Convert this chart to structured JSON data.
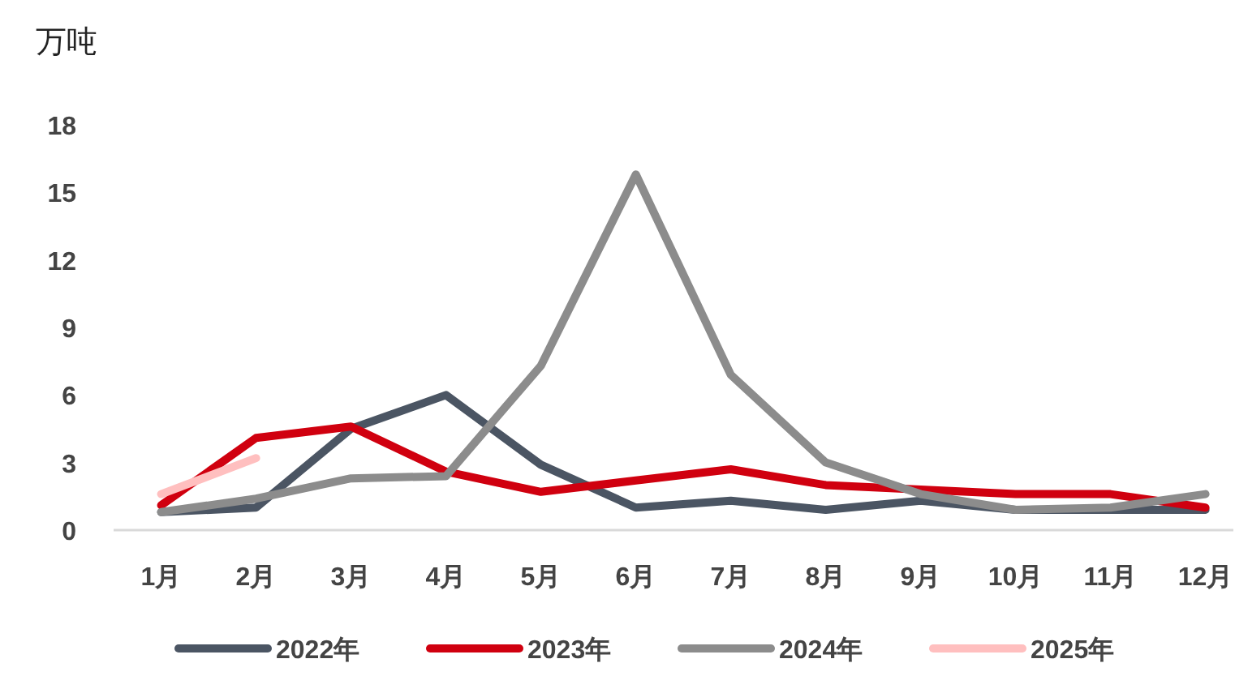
{
  "chart_data": {
    "type": "line",
    "ylabel": "万吨",
    "categories": [
      "1月",
      "2月",
      "3月",
      "4月",
      "5月",
      "6月",
      "7月",
      "8月",
      "9月",
      "10月",
      "11月",
      "12月"
    ],
    "series": [
      {
        "name": "2022年",
        "color": "#4b5563",
        "values": [
          0.8,
          1.0,
          4.5,
          6.0,
          2.9,
          1.0,
          1.3,
          0.9,
          1.3,
          0.9,
          0.9,
          0.9
        ]
      },
      {
        "name": "2023年",
        "color": "#d0000f",
        "values": [
          1.1,
          4.1,
          4.6,
          2.6,
          1.7,
          2.2,
          2.7,
          2.0,
          1.8,
          1.6,
          1.6,
          1.0
        ]
      },
      {
        "name": "2024年",
        "color": "#8c8c8c",
        "values": [
          0.8,
          1.4,
          2.3,
          2.4,
          7.3,
          15.8,
          6.9,
          3.0,
          1.6,
          0.9,
          1.0,
          1.6
        ]
      },
      {
        "name": "2025年",
        "color": "#ffbfbf",
        "values": [
          1.6,
          3.2,
          null,
          null,
          null,
          null,
          null,
          null,
          null,
          null,
          null,
          null
        ]
      }
    ],
    "ylim": [
      0,
      18
    ],
    "yticks": [
      0,
      3,
      6,
      9,
      12,
      15,
      18
    ],
    "grid": false,
    "legend": "bottom",
    "marker": "none",
    "line_style": "solid"
  }
}
